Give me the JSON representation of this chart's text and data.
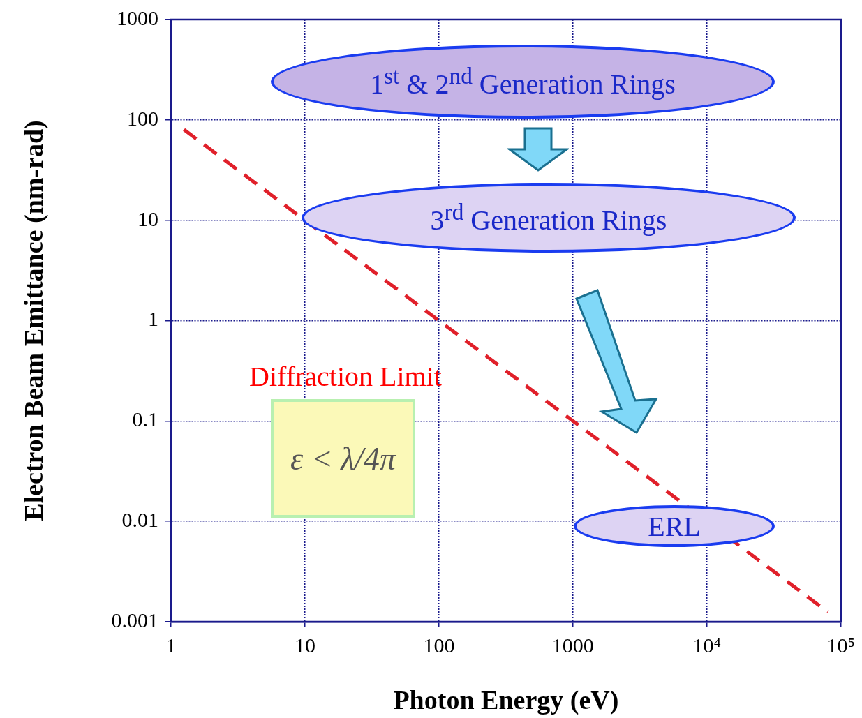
{
  "chart_data": {
    "type": "line",
    "xlabel": "Photon Energy (eV)",
    "ylabel": "Electron Beam Emittance (nm-rad)",
    "log": "xy",
    "grid": true,
    "legend": false,
    "marker": "none",
    "line_style": "dashed",
    "xlim": [
      1,
      100000
    ],
    "xticks": [
      1,
      10,
      100,
      1000,
      {
        "value": 10000,
        "label": "10⁴"
      },
      {
        "value": 100000,
        "label": "10⁵"
      }
    ],
    "ylim": [
      0.001,
      1000
    ],
    "yticks": [
      0.001,
      0.01,
      0.1,
      1,
      10,
      100,
      1000
    ],
    "series": [
      {
        "color": "#e0202a",
        "x": [
          1.25,
          80000
        ],
        "values": [
          80,
          0.00125
        ]
      }
    ],
    "annotations": [
      "1$^{st}$ & 2$^{nd}$ Generation Rings",
      "3$^{rd}$ Generation Rings",
      "ERL",
      "Diffraction Limit",
      "ε < λ/4π"
    ]
  }
}
